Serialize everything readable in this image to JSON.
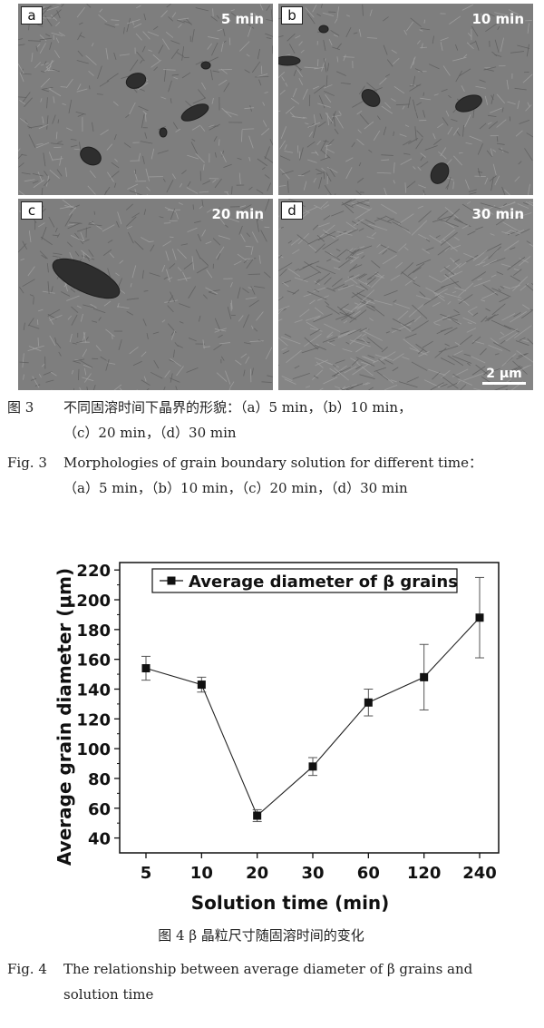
{
  "figure3": {
    "panels": [
      {
        "label": "a",
        "time": "5 min"
      },
      {
        "label": "b",
        "time": "10 min"
      },
      {
        "label": "c",
        "time": "20 min"
      },
      {
        "label": "d",
        "time": "30 min"
      }
    ],
    "scale_bar": "2 μm",
    "caption_cn_num": "图 3",
    "caption_cn_line1": "不同固溶时间下晶界的形貌：（a）5 min，（b）10 min，",
    "caption_cn_line2": "（c）20 min，（d）30 min",
    "caption_en_num": "Fig. 3",
    "caption_en_line1": "Morphologies of grain boundary solution for different time：",
    "caption_en_line2": "（a）5 min，（b）10 min，（c）20 min，（d）30 min"
  },
  "figure4": {
    "caption_cn": "图 4   β 晶粒尺寸随固溶时间的变化",
    "caption_en_num": "Fig. 4",
    "caption_en_line1": "The relationship between average diameter of β grains and",
    "caption_en_line2": "solution time"
  },
  "chart_data": {
    "type": "line",
    "categories": [
      "5",
      "10",
      "20",
      "30",
      "60",
      "120",
      "240"
    ],
    "series": [
      {
        "name": "Average  diameter of β grains",
        "values": [
          154,
          143,
          55,
          88,
          131,
          148,
          188
        ],
        "errors": [
          8,
          5,
          4,
          6,
          9,
          22,
          27
        ]
      }
    ],
    "xlabel": "Solution time (min)",
    "ylabel": "Average grain diameter (μm)",
    "ylim": [
      30,
      225
    ],
    "yticks": [
      40,
      60,
      80,
      100,
      120,
      140,
      160,
      180,
      200,
      220
    ],
    "marker": "square",
    "line_color": "#222222",
    "legend_position": "top-center",
    "grid": false
  }
}
